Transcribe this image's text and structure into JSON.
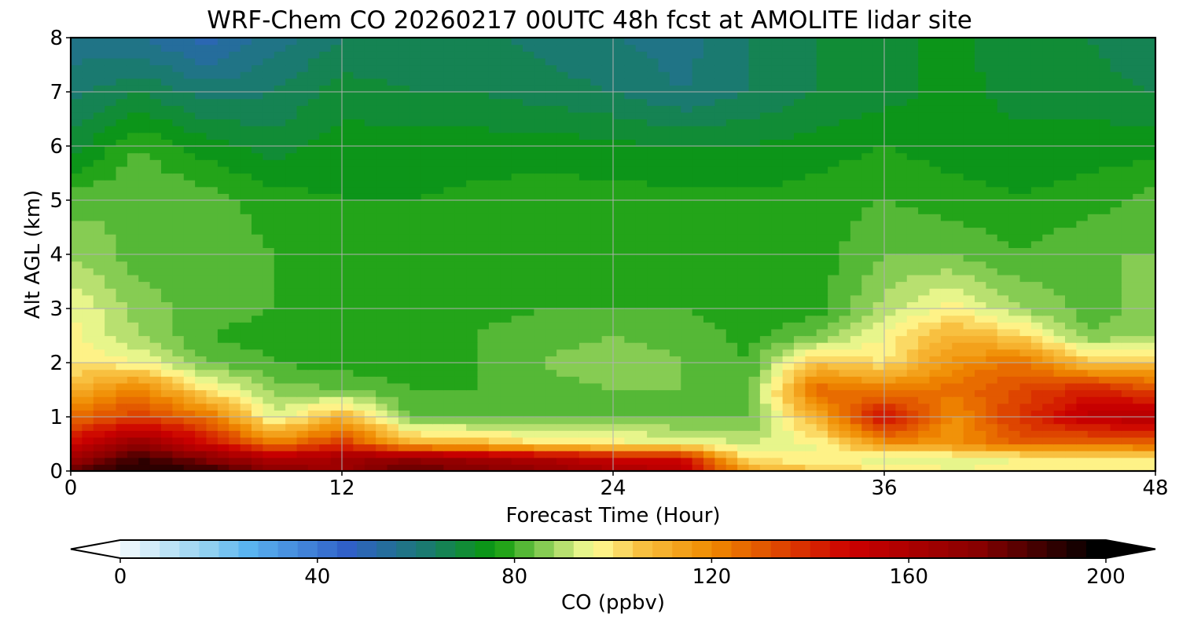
{
  "chart_data": {
    "type": "heatmap",
    "title": "WRF-Chem CO  20260217 00UTC 48h fcst at AMOLITE lidar site",
    "xlabel": "Forecast Time (Hour)",
    "ylabel": "Alt AGL (km)",
    "xlim": [
      0,
      48
    ],
    "ylim": [
      0,
      8
    ],
    "x_ticks": [
      "0",
      "12",
      "24",
      "36",
      "48"
    ],
    "y_ticks": [
      "0",
      "1",
      "2",
      "3",
      "4",
      "5",
      "6",
      "7",
      "8"
    ],
    "grid": true,
    "colorbar": {
      "label": "CO  (ppbv)",
      "range": [
        0,
        200
      ],
      "ticks": [
        "0",
        "40",
        "80",
        "120",
        "160",
        "200"
      ],
      "extend": "both",
      "stops": [
        {
          "value": 0,
          "color": "#ffffff"
        },
        {
          "value": 20,
          "color": "#90d0f0"
        },
        {
          "value": 28,
          "color": "#5ab4f0"
        },
        {
          "value": 48,
          "color": "#3060c8"
        },
        {
          "value": 64,
          "color": "#1a7a70"
        },
        {
          "value": 78,
          "color": "#0a9a0a"
        },
        {
          "value": 92,
          "color": "#b8e070"
        },
        {
          "value": 98,
          "color": "#ffff99"
        },
        {
          "value": 108,
          "color": "#f8c040"
        },
        {
          "value": 122,
          "color": "#f08a00"
        },
        {
          "value": 150,
          "color": "#cc0000"
        },
        {
          "value": 176,
          "color": "#880000"
        },
        {
          "value": 200,
          "color": "#000000"
        }
      ]
    },
    "x_hours": [
      0,
      3,
      6,
      9,
      12,
      15,
      18,
      21,
      24,
      27,
      30,
      33,
      36,
      39,
      42,
      45,
      48
    ],
    "z_km": [
      0,
      0.25,
      0.5,
      1,
      1.5,
      2,
      2.5,
      3,
      4,
      5,
      6,
      7,
      8
    ],
    "co_ppbv": [
      [
        185,
        196,
        192,
        175,
        170,
        185,
        178,
        172,
        165,
        158,
        115,
        108,
        102,
        98,
        99,
        102,
        102
      ],
      [
        168,
        190,
        175,
        160,
        165,
        172,
        165,
        160,
        150,
        148,
        100,
        98,
        95,
        96,
        98,
        100,
        100
      ],
      [
        150,
        172,
        150,
        125,
        140,
        112,
        110,
        102,
        100,
        98,
        94,
        98,
        120,
        120,
        130,
        128,
        130
      ],
      [
        128,
        138,
        128,
        95,
        112,
        86,
        84,
        84,
        86,
        85,
        85,
        112,
        150,
        120,
        140,
        155,
        160
      ],
      [
        112,
        125,
        102,
        88,
        86,
        82,
        82,
        84,
        86,
        86,
        84,
        130,
        125,
        128,
        135,
        145,
        135
      ],
      [
        102,
        98,
        86,
        82,
        80,
        80,
        82,
        86,
        90,
        86,
        82,
        108,
        102,
        120,
        128,
        108,
        108
      ],
      [
        100,
        90,
        82,
        80,
        79,
        80,
        82,
        84,
        86,
        84,
        81,
        86,
        98,
        112,
        105,
        86,
        90
      ],
      [
        98,
        88,
        84,
        82,
        78,
        80,
        81,
        82,
        82,
        82,
        80,
        80,
        92,
        100,
        90,
        84,
        88
      ],
      [
        90,
        84,
        84,
        82,
        78,
        80,
        80,
        80,
        80,
        80,
        80,
        80,
        86,
        86,
        82,
        86,
        86
      ],
      [
        84,
        86,
        84,
        80,
        78,
        78,
        79,
        80,
        80,
        79,
        79,
        80,
        82,
        80,
        78,
        80,
        84
      ],
      [
        72,
        82,
        76,
        72,
        76,
        76,
        76,
        76,
        75,
        74,
        74,
        76,
        78,
        76,
        76,
        76,
        76
      ],
      [
        64,
        70,
        64,
        66,
        72,
        70,
        70,
        68,
        66,
        62,
        66,
        70,
        72,
        76,
        72,
        72,
        70
      ],
      [
        60,
        58,
        52,
        60,
        66,
        68,
        68,
        64,
        62,
        60,
        66,
        70,
        72,
        76,
        70,
        70,
        66
      ]
    ]
  }
}
